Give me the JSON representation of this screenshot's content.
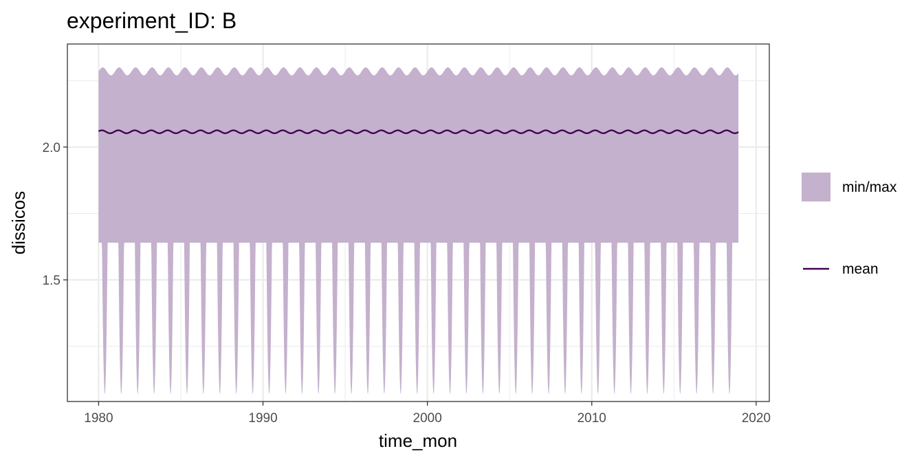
{
  "chart_data": {
    "type": "area",
    "title": "experiment_ID: B",
    "xlabel": "time_mon",
    "ylabel": "dissicos",
    "xlim": [
      1978.1,
      2020.8
    ],
    "ylim": [
      1.042,
      2.388
    ],
    "x_ticks": [
      1980,
      1990,
      2000,
      2010,
      2020
    ],
    "x_tick_labels": [
      "1980",
      "1990",
      "2000",
      "2010",
      "2020"
    ],
    "y_ticks": [
      1.5,
      2.0
    ],
    "y_tick_labels": [
      "1.5",
      "2.0"
    ],
    "grid": true,
    "legend_position": "right",
    "x_start": 1980.0,
    "x_end": 2018.92,
    "seasonal_period_years": 1,
    "series": [
      {
        "name": "min/max",
        "kind": "ribbon",
        "color": "#c4b1cd",
        "max_range": [
          2.27,
          2.3
        ],
        "min_range": [
          1.07,
          1.64
        ]
      },
      {
        "name": "mean",
        "kind": "line",
        "color": "#440154",
        "value_range": [
          2.052,
          2.063
        ]
      }
    ],
    "legend": [
      {
        "key": "ribbon",
        "label": "min/max",
        "color": "#c4b1cd"
      },
      {
        "key": "line",
        "label": "mean",
        "color": "#440154"
      }
    ]
  }
}
